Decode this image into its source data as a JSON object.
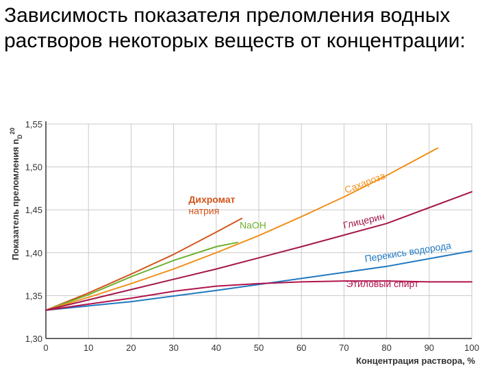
{
  "slide": {
    "title": "Зависимость показателя преломления водных растворов некоторых веществ от концентрации:"
  },
  "colors": {
    "dichromate": "#d2551b",
    "naoh": "#6fb02e",
    "sucrose": "#f0901a",
    "glycerin": "#a3164a",
    "peroxide": "#1f78c0",
    "ethanol": "#b0134d",
    "grid": "#c9c9c9",
    "axis": "#333333"
  },
  "chart_data": {
    "type": "line",
    "xlabel": "Концентрация раствора, %",
    "ylabel": "Показатель преломления n",
    "ylabel_sup": "20",
    "ylabel_sub": "D",
    "xlim": [
      0,
      100
    ],
    "ylim": [
      1.3,
      1.55
    ],
    "x_ticks": [
      "0",
      "10",
      "20",
      "30",
      "40",
      "50",
      "60",
      "70",
      "80",
      "90",
      "100"
    ],
    "y_ticks": [
      "1,30",
      "1,35",
      "1,40",
      "1,45",
      "1,50",
      "1,55"
    ],
    "grid": true,
    "series": [
      {
        "name": "Дихромат натрия",
        "label_lines": [
          "Дихромат",
          "натрия"
        ],
        "color": "#d2551b",
        "x": [
          0,
          10,
          20,
          30,
          40,
          46
        ],
        "y": [
          1.333,
          1.353,
          1.375,
          1.398,
          1.424,
          1.44
        ]
      },
      {
        "name": "NaOH",
        "color": "#6fb02e",
        "x": [
          0,
          10,
          20,
          30,
          40,
          45
        ],
        "y": [
          1.333,
          1.351,
          1.372,
          1.391,
          1.407,
          1.412
        ]
      },
      {
        "name": "Сахароза",
        "color": "#f0901a",
        "x": [
          0,
          10,
          20,
          30,
          40,
          50,
          60,
          70,
          80,
          92
        ],
        "y": [
          1.333,
          1.348,
          1.364,
          1.381,
          1.4,
          1.42,
          1.442,
          1.465,
          1.49,
          1.522
        ]
      },
      {
        "name": "Глицерин",
        "color": "#a3164a",
        "x": [
          0,
          20,
          40,
          60,
          80,
          100
        ],
        "y": [
          1.333,
          1.357,
          1.381,
          1.407,
          1.434,
          1.471
        ]
      },
      {
        "name": "Перекись водорода",
        "color": "#1f78c0",
        "x": [
          0,
          20,
          40,
          60,
          80,
          100
        ],
        "y": [
          1.333,
          1.343,
          1.356,
          1.37,
          1.384,
          1.402
        ]
      },
      {
        "name": "Этиловый спирт",
        "color": "#b0134d",
        "x": [
          0,
          10,
          20,
          30,
          40,
          50,
          60,
          70,
          80,
          90,
          100
        ],
        "y": [
          1.333,
          1.34,
          1.347,
          1.355,
          1.361,
          1.364,
          1.366,
          1.367,
          1.367,
          1.366,
          1.366
        ]
      }
    ]
  }
}
